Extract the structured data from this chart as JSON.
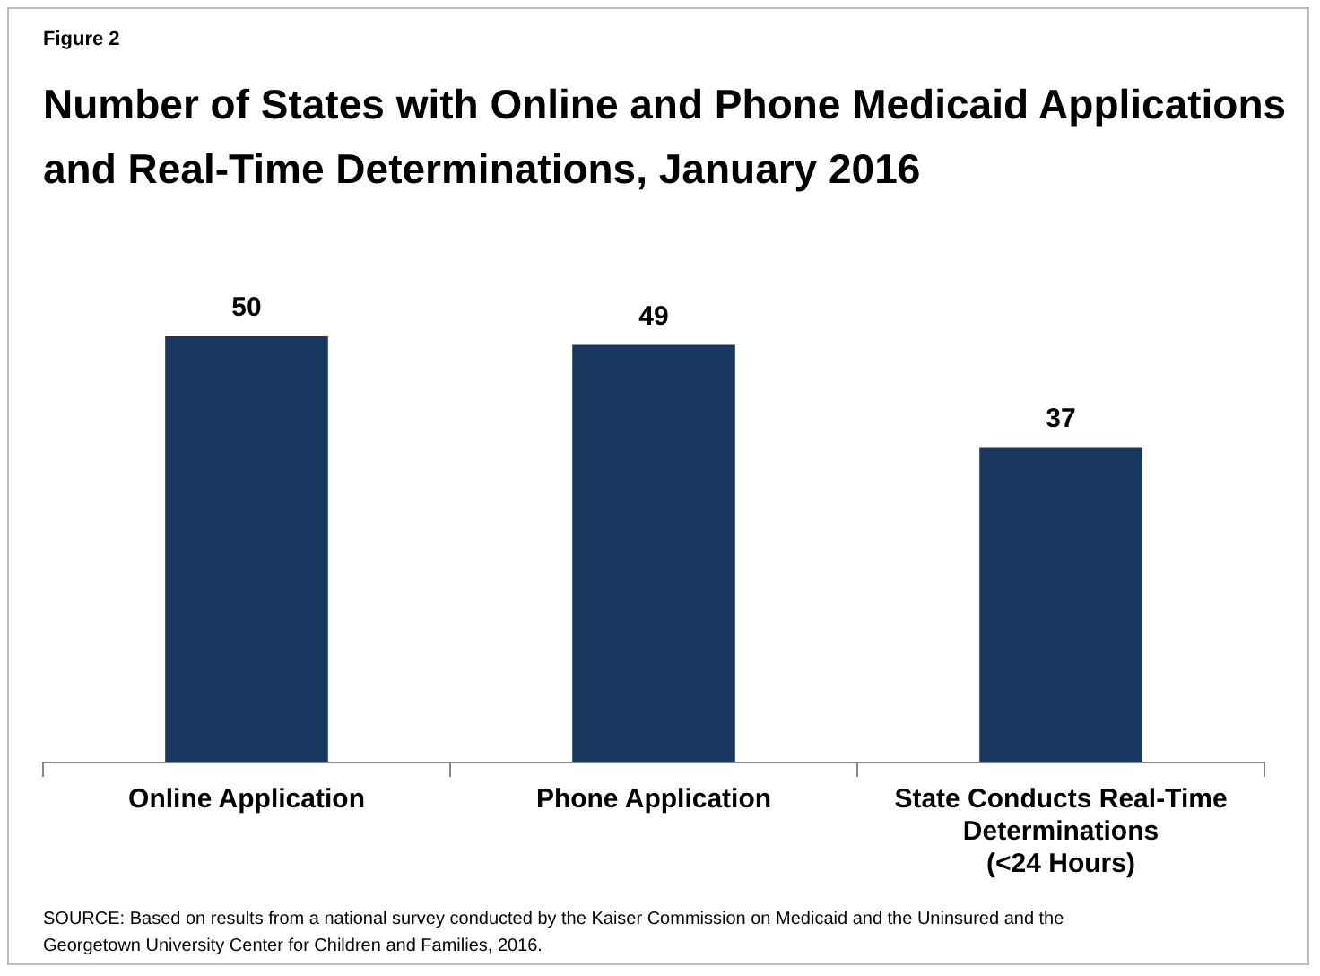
{
  "chart_data": {
    "type": "bar",
    "title": "Number of States with Online and Phone Medicaid Applications and Real-Time Determinations, January 2016",
    "categories": [
      "Online Application",
      "Phone Application",
      "State Conducts Real-Time Determinations (<24 Hours)"
    ],
    "values": [
      50,
      49,
      37
    ],
    "color": "#17375e",
    "data_labels": true,
    "grid": false,
    "legend": false,
    "annotations": [
      "Figure 2",
      "SOURCE: Based on results from a national survey conducted by the Kaiser Commission on Medicaid and the Uninsured and the Georgetown University Center for Children and Families, 2016."
    ]
  }
}
